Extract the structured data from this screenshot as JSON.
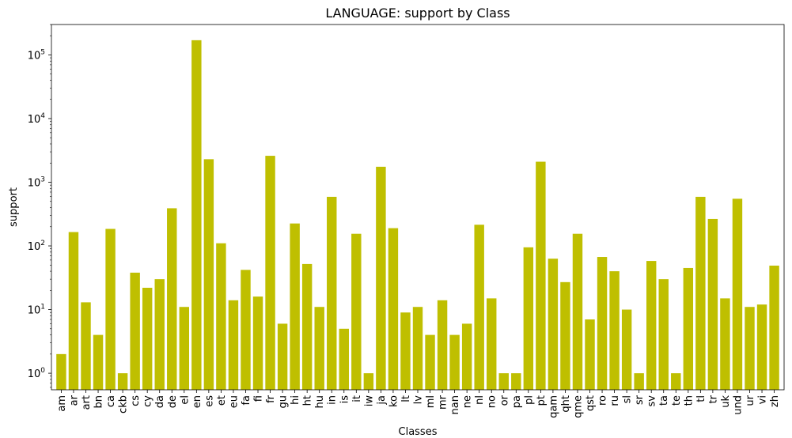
{
  "chart_data": {
    "type": "bar",
    "scale": "log",
    "title": "LANGUAGE: support by Class",
    "xlabel": "Classes",
    "ylabel": "support",
    "color": "#bfbf00",
    "ylim": [
      0.55,
      300000
    ],
    "yticks": [
      {
        "value": 1,
        "base": "10",
        "exp": "0"
      },
      {
        "value": 10,
        "base": "10",
        "exp": "1"
      },
      {
        "value": 100,
        "base": "10",
        "exp": "2"
      },
      {
        "value": 1000,
        "base": "10",
        "exp": "3"
      },
      {
        "value": 10000,
        "base": "10",
        "exp": "4"
      },
      {
        "value": 100000,
        "base": "10",
        "exp": "5"
      }
    ],
    "categories": [
      "am",
      "ar",
      "art",
      "bn",
      "ca",
      "ckb",
      "cs",
      "cy",
      "da",
      "de",
      "el",
      "en",
      "es",
      "et",
      "eu",
      "fa",
      "fi",
      "fr",
      "gu",
      "hi",
      "ht",
      "hu",
      "in",
      "is",
      "it",
      "iw",
      "ja",
      "ko",
      "lt",
      "lv",
      "ml",
      "mr",
      "nan",
      "ne",
      "nl",
      "no",
      "or",
      "pa",
      "pl",
      "pt",
      "qam",
      "qht",
      "qme",
      "qst",
      "ro",
      "ru",
      "sl",
      "sr",
      "sv",
      "ta",
      "te",
      "th",
      "tl",
      "tr",
      "uk",
      "und",
      "ur",
      "vi",
      "zh"
    ],
    "values": [
      2,
      165,
      13,
      4,
      185,
      1,
      38,
      22,
      30,
      390,
      11,
      170000,
      2300,
      110,
      14,
      42,
      16,
      2600,
      6,
      225,
      52,
      11,
      590,
      5,
      155,
      1,
      1750,
      190,
      9,
      11,
      4,
      14,
      4,
      6,
      215,
      15,
      1,
      1,
      95,
      2100,
      63,
      27,
      155,
      7,
      67,
      40,
      10,
      1,
      58,
      30,
      1,
      45,
      590,
      265,
      15,
      550,
      11,
      12,
      49
    ]
  }
}
